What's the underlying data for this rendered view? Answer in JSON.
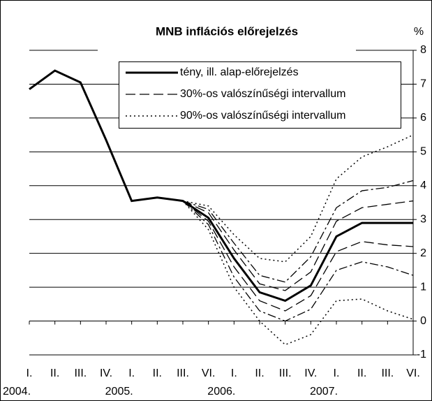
{
  "chart_data": {
    "type": "line",
    "title": "MNB inflációs előrejelzés",
    "y_unit": "%",
    "categories": [
      "I.",
      "II.",
      "III.",
      "IV.",
      "I.",
      "II.",
      "III.",
      "VI.",
      "I.",
      "II.",
      "III.",
      "IV.",
      "I.",
      "II.",
      "III.",
      "VI."
    ],
    "year_labels": [
      "2004.",
      null,
      null,
      null,
      "2005.",
      null,
      null,
      null,
      "2006.",
      null,
      null,
      null,
      "2007.",
      null,
      null,
      null
    ],
    "ylim": [
      -1,
      8
    ],
    "yticks": [
      -1,
      0,
      1,
      2,
      3,
      4,
      5,
      6,
      7,
      8
    ],
    "grid": true,
    "legend": "top-right",
    "series": [
      {
        "name": "tény, ill. alap-előrejelzés",
        "color": "#000000",
        "style": "solid",
        "values": [
          6.85,
          7.4,
          7.05,
          5.35,
          3.55,
          3.65,
          3.55,
          3.05,
          1.85,
          0.85,
          0.6,
          1.05,
          2.5,
          2.9,
          2.9,
          2.9
        ]
      },
      {
        "name": "30%-os valószínűségi intervallum",
        "color": "#000000",
        "style": "dash",
        "values": [
          null,
          null,
          null,
          null,
          null,
          null,
          3.55,
          3.2,
          2.1,
          1.1,
          0.9,
          1.45,
          2.95,
          3.35,
          3.45,
          3.55
        ]
      },
      {
        "color": "#000000",
        "style": "dash",
        "values": [
          null,
          null,
          null,
          null,
          null,
          null,
          3.55,
          2.95,
          1.6,
          0.6,
          0.3,
          0.75,
          2.05,
          2.35,
          2.25,
          2.2
        ]
      },
      {
        "color": "#000000",
        "style": "dashdot",
        "values": [
          null,
          null,
          null,
          null,
          null,
          null,
          3.55,
          3.3,
          2.3,
          1.35,
          1.15,
          1.9,
          3.35,
          3.85,
          3.95,
          4.15
        ]
      },
      {
        "color": "#000000",
        "style": "dashdot",
        "values": [
          null,
          null,
          null,
          null,
          null,
          null,
          3.55,
          2.85,
          1.3,
          0.3,
          0.0,
          0.35,
          1.5,
          1.75,
          1.6,
          1.35
        ]
      },
      {
        "name": "90%-os valószínűségi intervallum",
        "color": "#000000",
        "style": "dot",
        "values": [
          null,
          null,
          null,
          null,
          null,
          null,
          3.55,
          3.4,
          2.55,
          1.85,
          1.75,
          2.5,
          4.2,
          4.85,
          5.15,
          5.5
        ]
      },
      {
        "color": "#000000",
        "style": "dot",
        "values": [
          null,
          null,
          null,
          null,
          null,
          null,
          3.55,
          2.7,
          1.0,
          0.0,
          -0.7,
          -0.4,
          0.6,
          0.65,
          0.3,
          0.05
        ]
      }
    ]
  }
}
